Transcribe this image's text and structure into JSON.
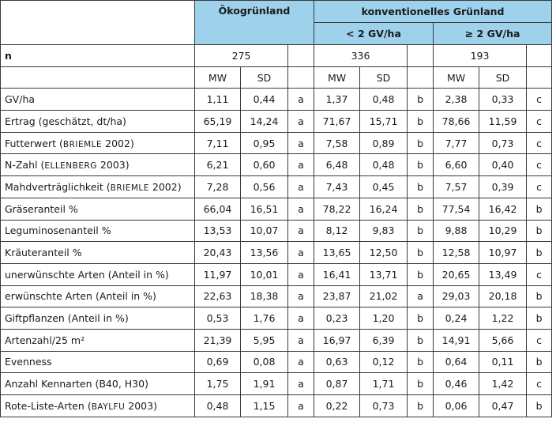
{
  "header": {
    "group_oko": "Ökogrünland",
    "group_konv": "konventionelles Grünland",
    "sub_lt2": "< 2 GV/ha",
    "sub_ge2": "≥ 2 GV/ha"
  },
  "n_row": {
    "label": "n",
    "oko": "275",
    "lt2": "336",
    "ge2": "193"
  },
  "stat_row": {
    "mw": "MW",
    "sd": "SD"
  },
  "rows": [
    {
      "label": "GV/ha",
      "oko_mw": "1,11",
      "oko_sd": "0,44",
      "oko_l": "a",
      "lt2_mw": "1,37",
      "lt2_sd": "0,48",
      "lt2_l": "b",
      "ge2_mw": "2,38",
      "ge2_sd": "0,33",
      "ge2_l": "c"
    },
    {
      "label": "Ertrag (geschätzt, dt/ha)",
      "oko_mw": "65,19",
      "oko_sd": "14,24",
      "oko_l": "a",
      "lt2_mw": "71,67",
      "lt2_sd": "15,71",
      "lt2_l": "b",
      "ge2_mw": "78,66",
      "ge2_sd": "11,59",
      "ge2_l": "c"
    },
    {
      "label": "Futterwert (",
      "label_sc": "Briemle",
      "label_tail": " 2002)",
      "oko_mw": "7,11",
      "oko_sd": "0,95",
      "oko_l": "a",
      "lt2_mw": "7,58",
      "lt2_sd": "0,89",
      "lt2_l": "b",
      "ge2_mw": "7,77",
      "ge2_sd": "0,73",
      "ge2_l": "c"
    },
    {
      "label": "N-Zahl (",
      "label_sc": "Ellenberg",
      "label_tail": " 2003)",
      "oko_mw": "6,21",
      "oko_sd": "0,60",
      "oko_l": "a",
      "lt2_mw": "6,48",
      "lt2_sd": "0,48",
      "lt2_l": "b",
      "ge2_mw": "6,60",
      "ge2_sd": "0,40",
      "ge2_l": "c"
    },
    {
      "label": "Mahdverträglichkeit (",
      "label_sc": "Briemle",
      "label_tail": " 2002)",
      "oko_mw": "7,28",
      "oko_sd": "0,56",
      "oko_l": "a",
      "lt2_mw": "7,43",
      "lt2_sd": "0,45",
      "lt2_l": "b",
      "ge2_mw": "7,57",
      "ge2_sd": "0,39",
      "ge2_l": "c"
    },
    {
      "label": "Gräseranteil %",
      "oko_mw": "66,04",
      "oko_sd": "16,51",
      "oko_l": "a",
      "lt2_mw": "78,22",
      "lt2_sd": "16,24",
      "lt2_l": "b",
      "ge2_mw": "77,54",
      "ge2_sd": "16,42",
      "ge2_l": "b"
    },
    {
      "label": "Leguminosenanteil %",
      "oko_mw": "13,53",
      "oko_sd": "10,07",
      "oko_l": "a",
      "lt2_mw": "8,12",
      "lt2_sd": "9,83",
      "lt2_l": "b",
      "ge2_mw": "9,88",
      "ge2_sd": "10,29",
      "ge2_l": "b"
    },
    {
      "label": "Kräuteranteil %",
      "oko_mw": "20,43",
      "oko_sd": "13,56",
      "oko_l": "a",
      "lt2_mw": "13,65",
      "lt2_sd": "12,50",
      "lt2_l": "b",
      "ge2_mw": "12,58",
      "ge2_sd": "10,97",
      "ge2_l": "b"
    },
    {
      "label": "unerwünschte Arten (Anteil in %)",
      "oko_mw": "11,97",
      "oko_sd": "10,01",
      "oko_l": "a",
      "lt2_mw": "16,41",
      "lt2_sd": "13,71",
      "lt2_l": "b",
      "ge2_mw": "20,65",
      "ge2_sd": "13,49",
      "ge2_l": "c"
    },
    {
      "label": "erwünschte Arten (Anteil in %)",
      "oko_mw": "22,63",
      "oko_sd": "18,38",
      "oko_l": "a",
      "lt2_mw": "23,87",
      "lt2_sd": "21,02",
      "lt2_l": "a",
      "ge2_mw": "29,03",
      "ge2_sd": "20,18",
      "ge2_l": "b"
    },
    {
      "label": "Giftpflanzen (Anteil in %)",
      "oko_mw": "0,53",
      "oko_sd": "1,76",
      "oko_l": "a",
      "lt2_mw": "0,23",
      "lt2_sd": "1,20",
      "lt2_l": "b",
      "ge2_mw": "0,24",
      "ge2_sd": "1,22",
      "ge2_l": "b"
    },
    {
      "label": "Artenzahl/25 m²",
      "oko_mw": "21,39",
      "oko_sd": "5,95",
      "oko_l": "a",
      "lt2_mw": "16,97",
      "lt2_sd": "6,39",
      "lt2_l": "b",
      "ge2_mw": "14,91",
      "ge2_sd": "5,66",
      "ge2_l": "c"
    },
    {
      "label": "Evenness",
      "oko_mw": "0,69",
      "oko_sd": "0,08",
      "oko_l": "a",
      "lt2_mw": "0,63",
      "lt2_sd": "0,12",
      "lt2_l": "b",
      "ge2_mw": "0,64",
      "ge2_sd": "0,11",
      "ge2_l": "b"
    },
    {
      "label": "Anzahl Kennarten (B40, H30)",
      "oko_mw": "1,75",
      "oko_sd": "1,91",
      "oko_l": "a",
      "lt2_mw": "0,87",
      "lt2_sd": "1,71",
      "lt2_l": "b",
      "ge2_mw": "0,46",
      "ge2_sd": "1,42",
      "ge2_l": "c"
    },
    {
      "label": "Rote-Liste-Arten (",
      "label_sc": "BayLfU",
      "label_tail": " 2003)",
      "oko_mw": "0,48",
      "oko_sd": "1,15",
      "oko_l": "a",
      "lt2_mw": "0,22",
      "lt2_sd": "0,73",
      "lt2_l": "b",
      "ge2_mw": "0,06",
      "ge2_sd": "0,47",
      "ge2_l": "b"
    }
  ]
}
